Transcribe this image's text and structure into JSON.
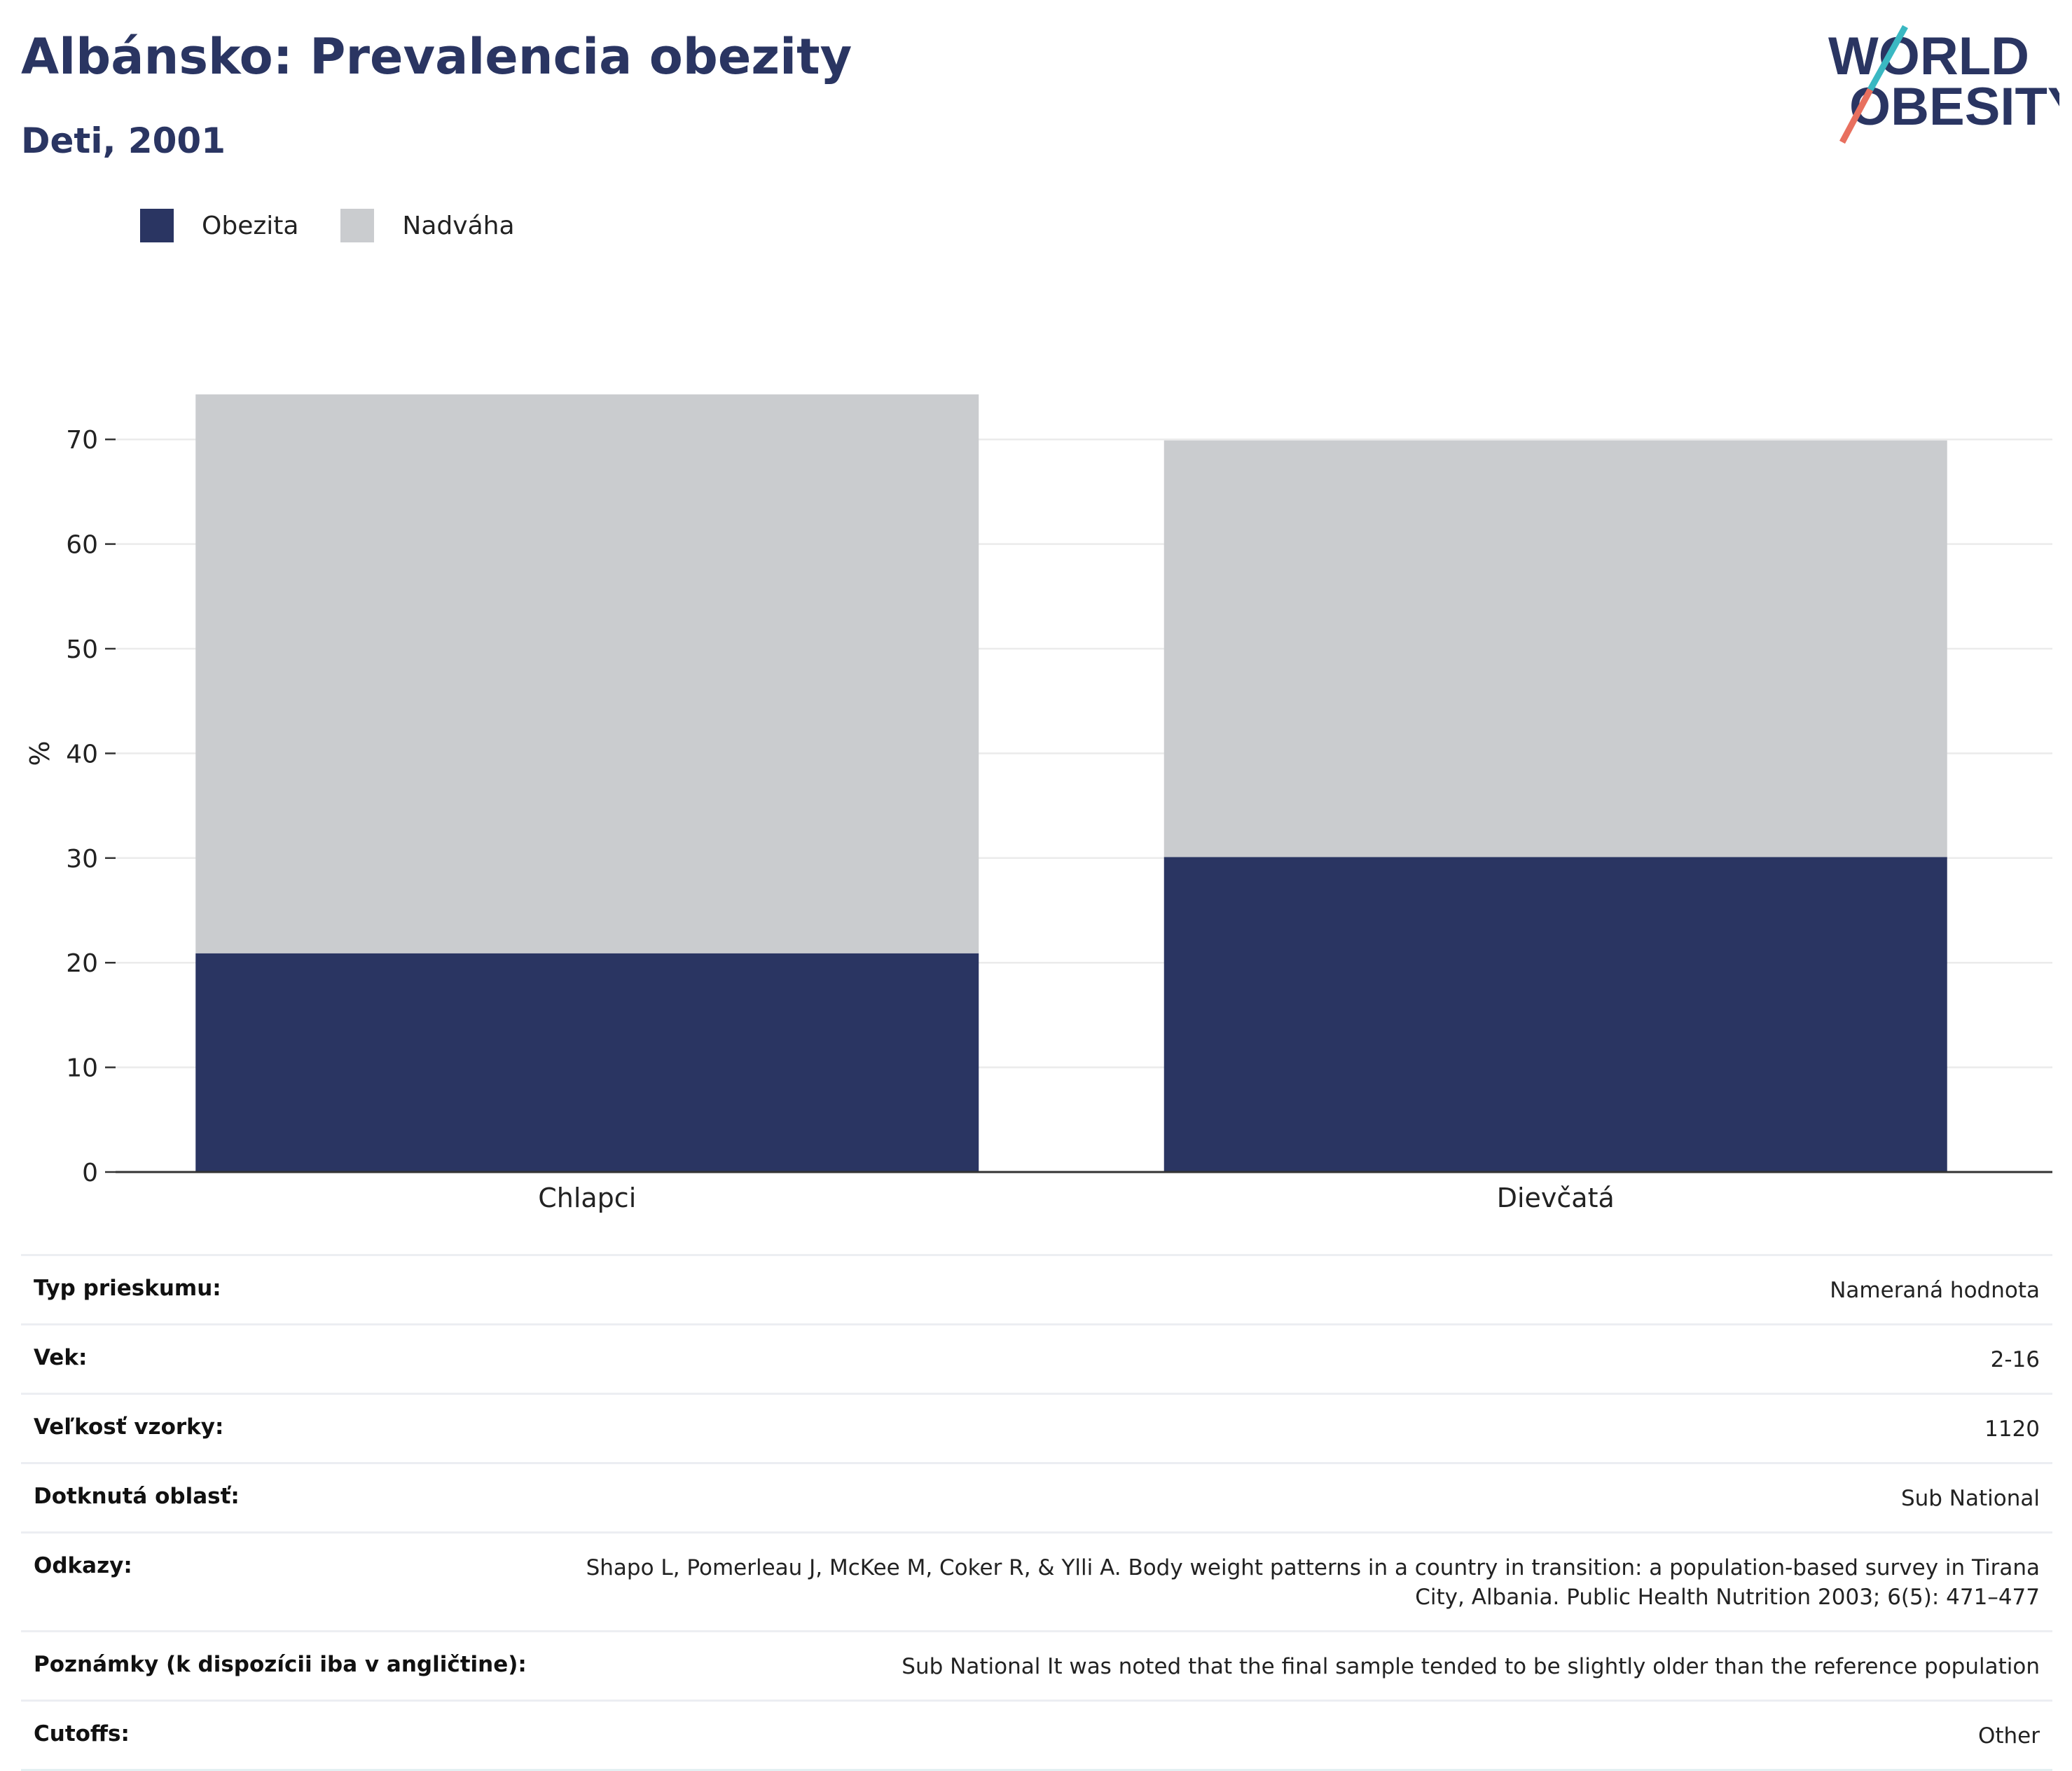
{
  "title": "Albánsko: Prevalencia obezity",
  "subtitle": "Deti, 2001",
  "logo": {
    "line1": "WORLD",
    "line2": "OBESITY"
  },
  "colors": {
    "obesity": "#2a3562",
    "overweight": "#cacccf",
    "title": "#2a3562",
    "logo_teal": "#3ab8c2",
    "logo_coral": "#e8705f"
  },
  "legend": [
    {
      "label": "Obezita",
      "color": "#2a3562"
    },
    {
      "label": "Nadváha",
      "color": "#cacccf"
    }
  ],
  "chart_data": {
    "type": "bar",
    "stacked": true,
    "categories": [
      "Chlapci",
      "Dievčatá"
    ],
    "series": [
      {
        "name": "Obezita",
        "values": [
          20.9,
          30.1
        ]
      },
      {
        "name": "Nadváha",
        "values": [
          53.4,
          39.8
        ]
      }
    ],
    "ylabel": "%",
    "ylim": [
      0,
      75
    ],
    "yticks": [
      0,
      10,
      20,
      30,
      40,
      50,
      60,
      70
    ],
    "grid": true,
    "legend_position": "top-left"
  },
  "info": [
    {
      "key": "Typ prieskumu:",
      "value": "Nameraná hodnota"
    },
    {
      "key": "Vek:",
      "value": "2-16"
    },
    {
      "key": "Veľkosť vzorky:",
      "value": "1120"
    },
    {
      "key": "Dotknutá oblasť:",
      "value": "Sub National"
    },
    {
      "key": "Odkazy:",
      "value": "Shapo L, Pomerleau J, McKee M, Coker R, & Ylli A. Body weight patterns in a country in transition: a population-based survey in Tirana City, Albania. Public Health Nutrition 2003; 6(5): 471–477"
    },
    {
      "key": "Poznámky (k dispozícii iba v angličtine):",
      "value": "Sub National It was noted that the final sample tended to be slightly older than the reference population"
    },
    {
      "key": "Cutoffs:",
      "value": "Other"
    }
  ]
}
